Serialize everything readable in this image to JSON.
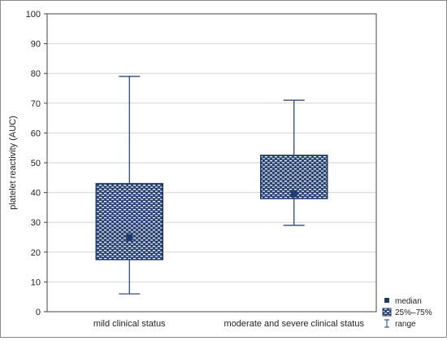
{
  "chart_data": {
    "type": "boxplot",
    "title": "",
    "xlabel": "",
    "ylabel": "platelet reactivity (AUC)",
    "ylim": [
      0,
      100
    ],
    "yticks": [
      0,
      10,
      20,
      30,
      40,
      50,
      60,
      70,
      80,
      90,
      100
    ],
    "grid": true,
    "legend_position": "bottom-right",
    "categories": [
      "mild clinical status",
      "moderate and severe clinical status"
    ],
    "boxes": [
      {
        "category": "mild clinical status",
        "min": 6,
        "q1": 17.5,
        "median": 25,
        "q3": 43,
        "max": 79
      },
      {
        "category": "moderate and severe clinical status",
        "min": 29,
        "q1": 38,
        "median": 39.5,
        "q3": 52.5,
        "max": 71
      }
    ],
    "legend": [
      {
        "label": "median",
        "marker": "median-square-icon"
      },
      {
        "label": "25%–75%",
        "marker": "box-pattern-icon"
      },
      {
        "label": "range",
        "marker": "whisker-icon"
      }
    ],
    "colors": {
      "series": "#1f3a6e",
      "grid": "#d6d6d6",
      "axis": "#444444"
    }
  }
}
